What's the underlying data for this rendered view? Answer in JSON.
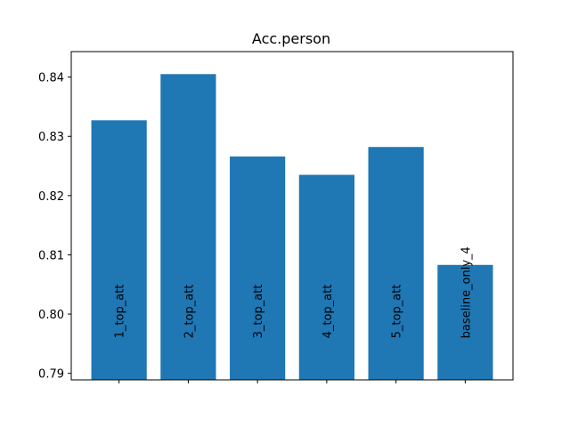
{
  "chart_data": {
    "type": "bar",
    "title": "Acc.person",
    "xlabel": "",
    "ylabel": "",
    "categories": [
      "1_top_att",
      "2_top_att",
      "3_top_att",
      "4_top_att",
      "5_top_att",
      "baseline_only_4"
    ],
    "values": [
      0.8327,
      0.8405,
      0.8266,
      0.8235,
      0.8282,
      0.8083
    ],
    "ylim": [
      0.7889,
      0.8443
    ],
    "yticks": [
      0.79,
      0.8,
      0.81,
      0.82,
      0.83,
      0.84
    ],
    "ytick_labels": [
      "0.79",
      "0.80",
      "0.81",
      "0.82",
      "0.83",
      "0.84"
    ],
    "bar_color": "#1f77b4",
    "grid": false,
    "category_labels_inside_bars": true
  }
}
